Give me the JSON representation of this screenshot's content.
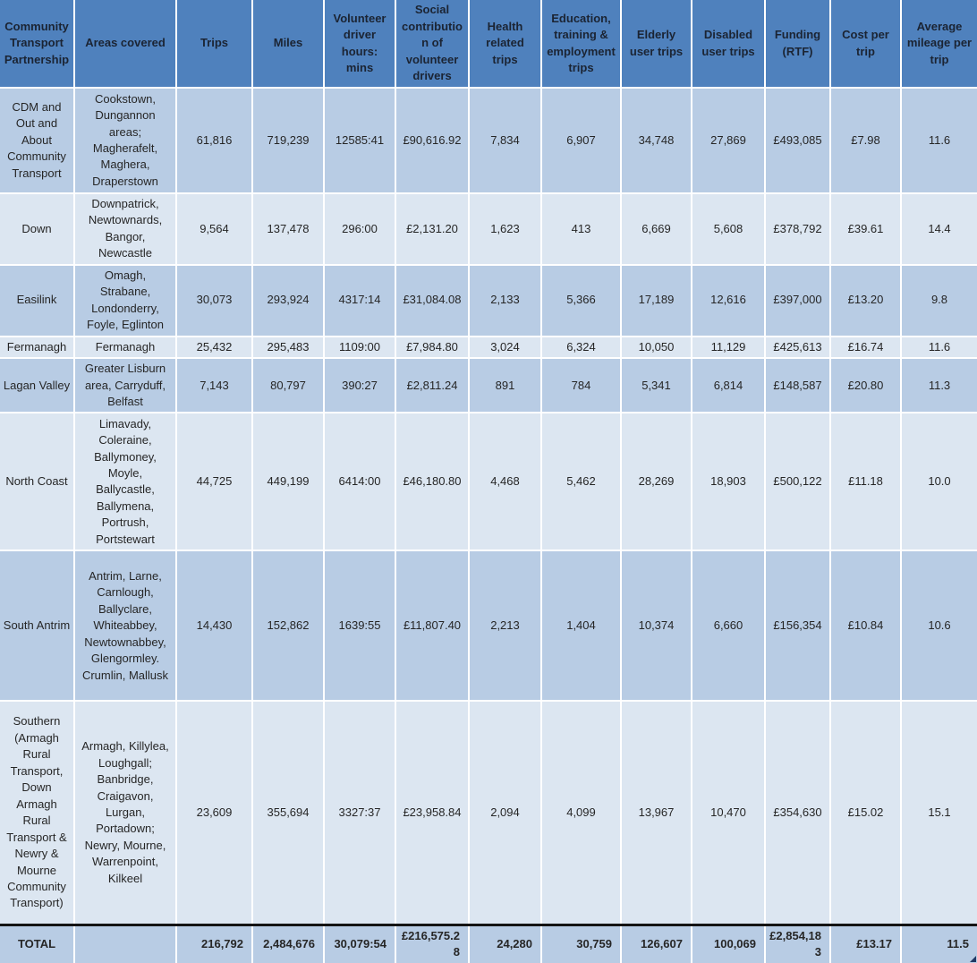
{
  "table": {
    "columns": [
      "Community Transport Partnership",
      "Areas covered",
      "Trips",
      "Miles",
      "Volunteer driver hours: mins",
      "Social contribution of volunteer drivers",
      "Health related trips",
      "Education, training & employment trips",
      "Elderly user trips",
      "Disabled user trips",
      "Funding (RTF)",
      "Cost per trip",
      "Average mileage per trip"
    ],
    "rows": [
      [
        "CDM and Out and About Community Transport",
        "Cookstown, Dungannon areas; Magherafelt, Maghera, Draperstown",
        "61,816",
        "719,239",
        "12585:41",
        "£90,616.92",
        "7,834",
        "6,907",
        "34,748",
        "27,869",
        "£493,085",
        "£7.98",
        "11.6"
      ],
      [
        "Down",
        "Downpatrick, Newtownards, Bangor, Newcastle",
        "9,564",
        "137,478",
        "296:00",
        "£2,131.20",
        "1,623",
        "413",
        "6,669",
        "5,608",
        "£378,792",
        "£39.61",
        "14.4"
      ],
      [
        "Easilink",
        "Omagh, Strabane, Londonderry, Foyle, Eglinton",
        "30,073",
        "293,924",
        "4317:14",
        "£31,084.08",
        "2,133",
        "5,366",
        "17,189",
        "12,616",
        "£397,000",
        "£13.20",
        "9.8"
      ],
      [
        "Fermanagh",
        "Fermanagh",
        "25,432",
        "295,483",
        "1109:00",
        "£7,984.80",
        "3,024",
        "6,324",
        "10,050",
        "11,129",
        "£425,613",
        "£16.74",
        "11.6"
      ],
      [
        "Lagan Valley",
        "Greater Lisburn area, Carryduff, Belfast",
        "7,143",
        "80,797",
        "390:27",
        "£2,811.24",
        "891",
        "784",
        "5,341",
        "6,814",
        "£148,587",
        "£20.80",
        "11.3"
      ],
      [
        "North Coast",
        "Limavady, Coleraine, Ballymoney, Moyle, Ballycastle, Ballymena, Portrush, Portstewart",
        "44,725",
        "449,199",
        "6414:00",
        "£46,180.80",
        "4,468",
        "5,462",
        "28,269",
        "18,903",
        "£500,122",
        "£11.18",
        "10.0"
      ],
      [
        "South Antrim",
        "Antrim, Larne, Carnlough, Ballyclare, Whiteabbey, Newtownabbey, Glengormley. Crumlin, Mallusk",
        "14,430",
        "152,862",
        "1639:55",
        "£11,807.40",
        "2,213",
        "1,404",
        "10,374",
        "6,660",
        "£156,354",
        "£10.84",
        "10.6"
      ],
      [
        "Southern (Armagh Rural Transport, Down Armagh Rural Transport & Newry & Mourne Community Transport)",
        "Armagh, Killylea, Loughgall; Banbridge, Craigavon, Lurgan, Portadown; Newry, Mourne, Warrenpoint, Kilkeel",
        "23,609",
        "355,694",
        "3327:37",
        "£23,958.84",
        "2,094",
        "4,099",
        "13,967",
        "10,470",
        "£354,630",
        "£15.02",
        "15.1"
      ]
    ],
    "total_row": [
      "TOTAL",
      "",
      "216,792",
      "2,484,676",
      "30,079:54",
      "£216,575.28",
      "24,280",
      "30,759",
      "126,607",
      "100,069",
      "£2,854,183",
      "£13.17",
      "11.5"
    ]
  },
  "colors": {
    "header_bg": "#4f81bd",
    "row_band_medium": "#b8cce4",
    "row_band_light": "#dce6f1",
    "gridline": "#ffffff",
    "total_border": "#141414",
    "header_text": "#1b2433",
    "body_text": "#262626"
  }
}
